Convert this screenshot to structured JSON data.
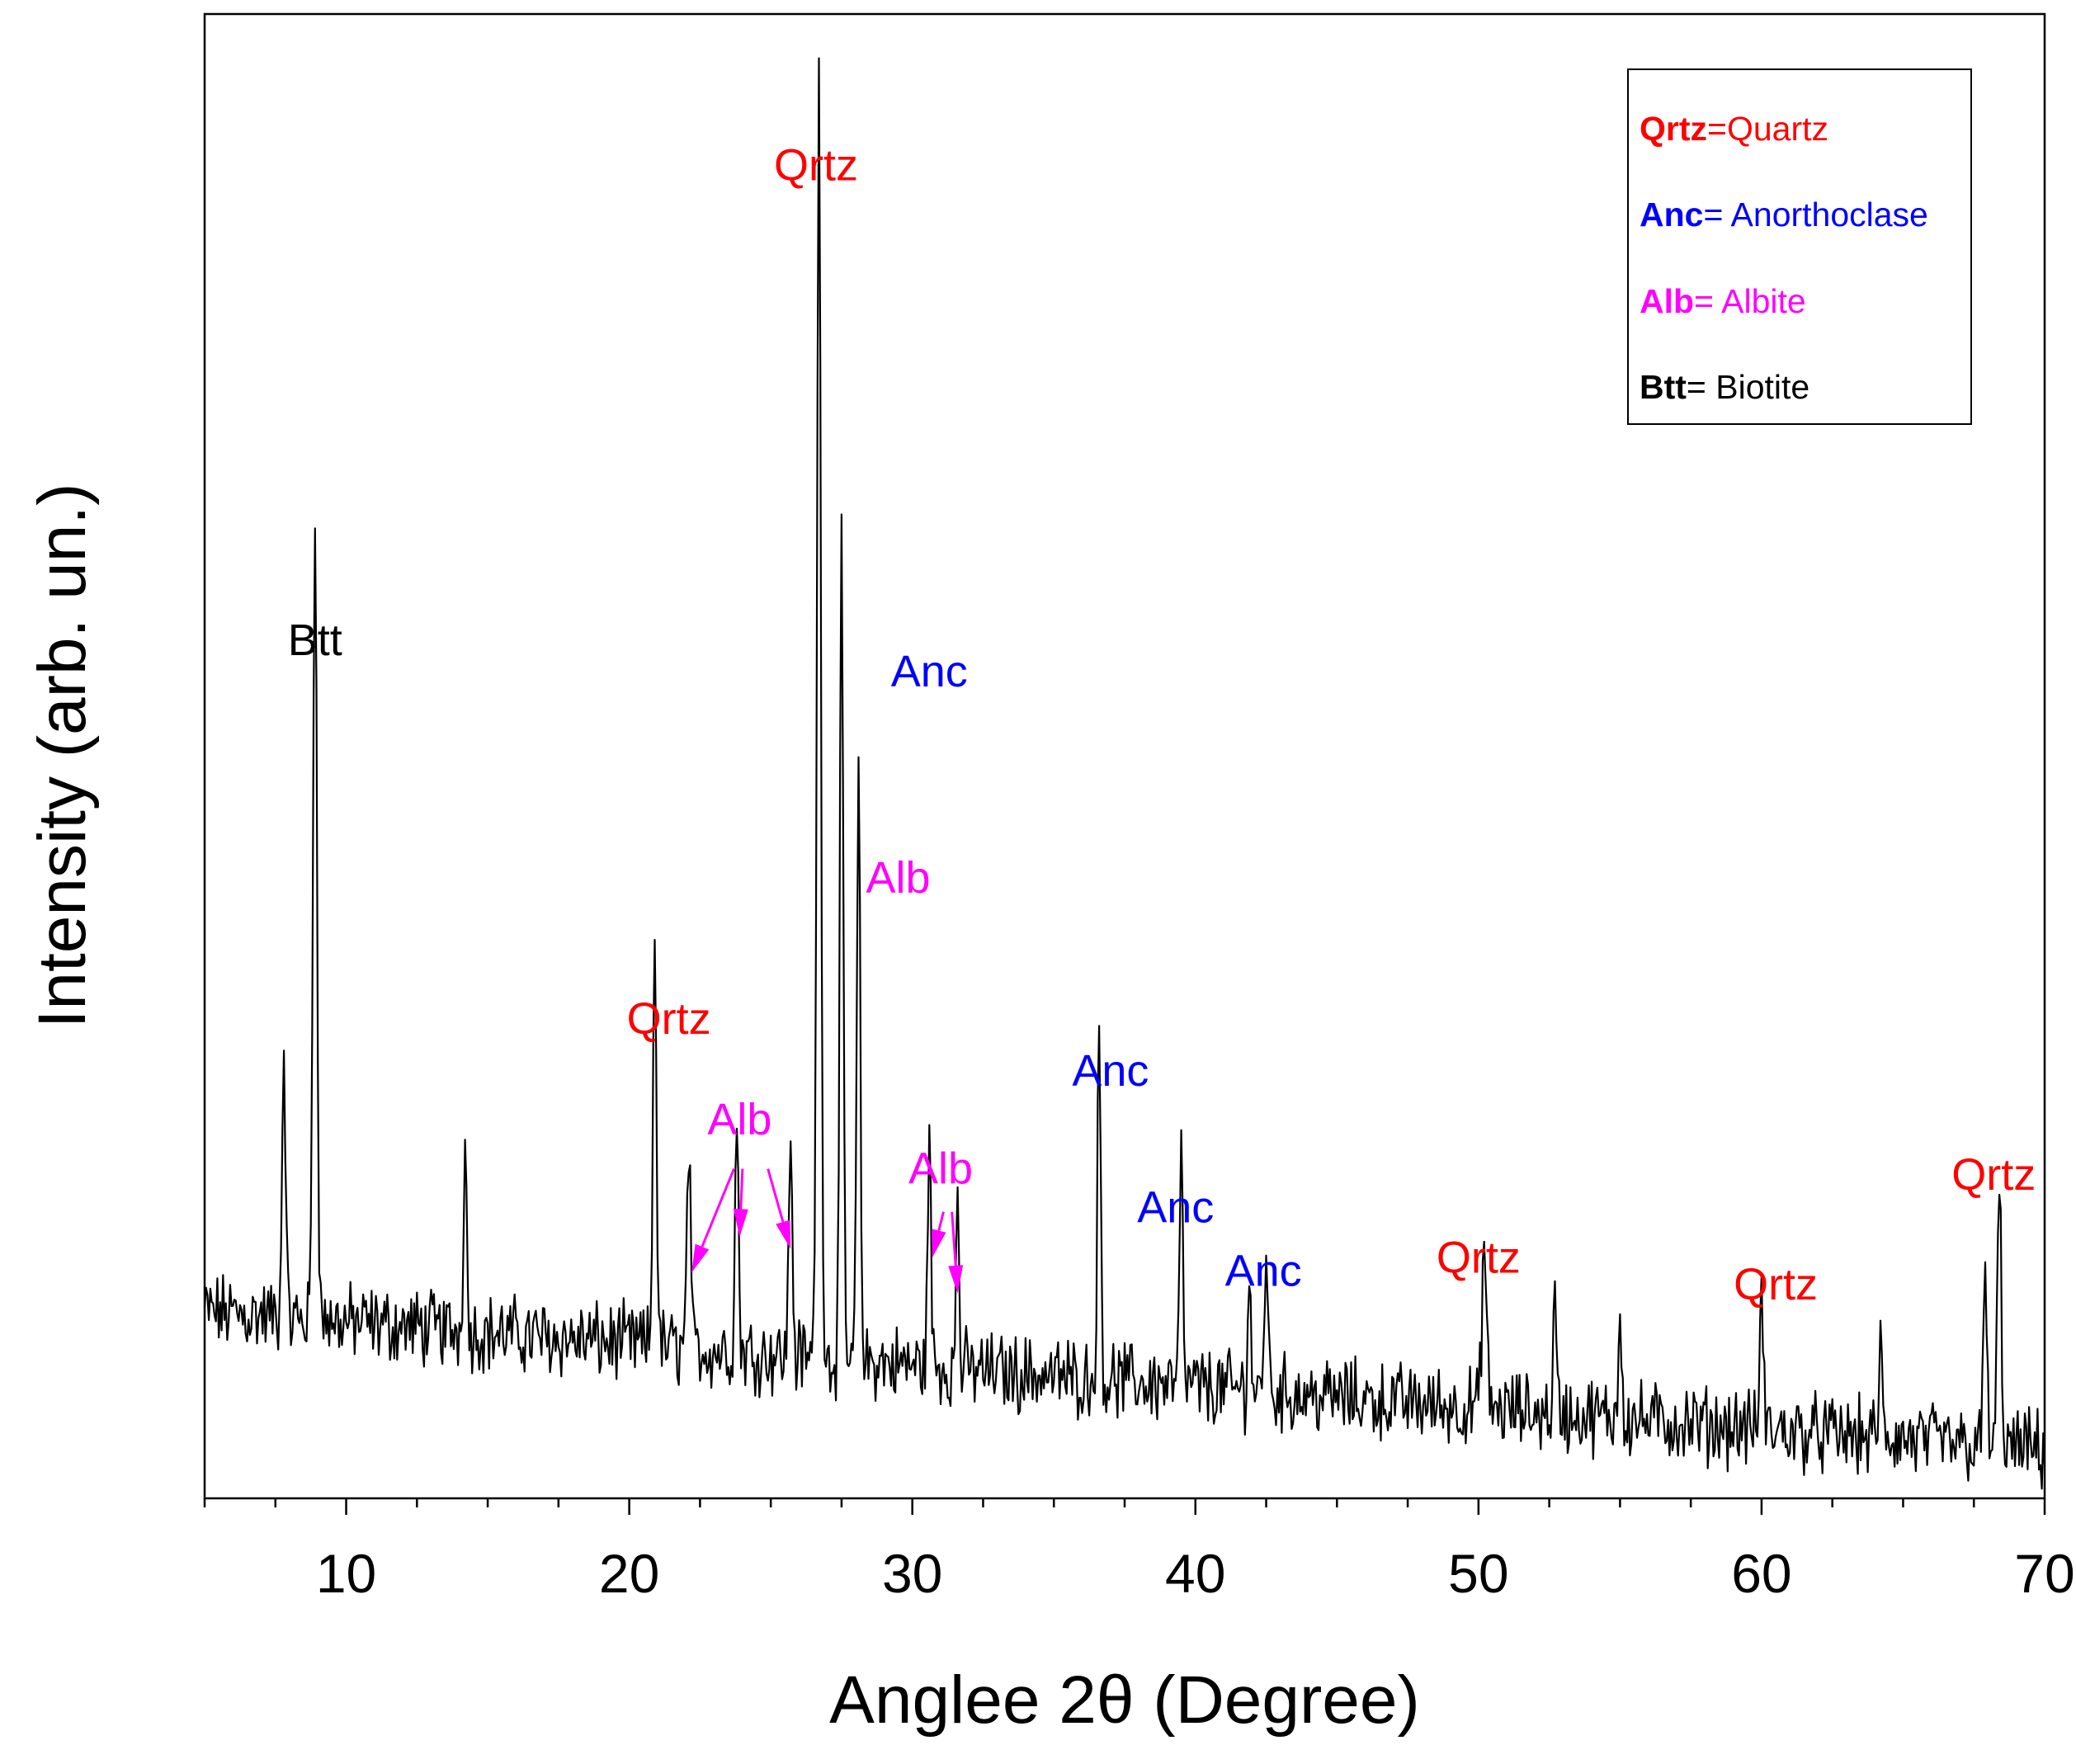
{
  "chart_data": {
    "type": "line",
    "title": "",
    "xlabel": "Anglee 2θ (Degree)",
    "ylabel": "Intensity (arb. un.)",
    "xlim": [
      5,
      70
    ],
    "ylim": [
      0,
      100
    ],
    "xticks": [
      10,
      20,
      30,
      40,
      50,
      60,
      70
    ],
    "x_minor_step": 2.5,
    "yticks": [],
    "grid": false,
    "baseline": {
      "start": 12.6,
      "end": 3.2,
      "noise": 2.1
    },
    "peaks": [
      {
        "x": 7.8,
        "y": 18.5,
        "w": 0.06
      },
      {
        "x": 8.9,
        "y": 55.0,
        "w": 0.07
      },
      {
        "x": 14.2,
        "y": 15.0,
        "w": 0.05
      },
      {
        "x": 20.9,
        "y": 29.0,
        "w": 0.06
      },
      {
        "x": 22.1,
        "y": 14.0,
        "w": 0.06
      },
      {
        "x": 23.8,
        "y": 16.0,
        "w": 0.06
      },
      {
        "x": 25.7,
        "y": 15.5,
        "w": 0.06
      },
      {
        "x": 26.7,
        "y": 86.0,
        "w": 0.07
      },
      {
        "x": 27.5,
        "y": 54.0,
        "w": 0.06
      },
      {
        "x": 28.1,
        "y": 40.0,
        "w": 0.06
      },
      {
        "x": 30.6,
        "y": 15.0,
        "w": 0.06
      },
      {
        "x": 31.6,
        "y": 12.5,
        "w": 0.05
      },
      {
        "x": 36.6,
        "y": 23.0,
        "w": 0.06
      },
      {
        "x": 39.5,
        "y": 15.0,
        "w": 0.06
      },
      {
        "x": 41.9,
        "y": 8.5,
        "w": 0.05
      },
      {
        "x": 42.5,
        "y": 10.0,
        "w": 0.06
      },
      {
        "x": 50.2,
        "y": 11.0,
        "w": 0.08
      },
      {
        "x": 52.7,
        "y": 7.5,
        "w": 0.06
      },
      {
        "x": 55.0,
        "y": 7.5,
        "w": 0.06
      },
      {
        "x": 60.0,
        "y": 9.5,
        "w": 0.06
      },
      {
        "x": 64.2,
        "y": 6.0,
        "w": 0.06
      },
      {
        "x": 67.9,
        "y": 12.0,
        "w": 0.06
      },
      {
        "x": 68.4,
        "y": 17.5,
        "w": 0.07
      }
    ],
    "annotations": [
      {
        "text": "Btt",
        "x": 8.9,
        "y": 56.8,
        "color": "#000000"
      },
      {
        "text": "Qrtz",
        "x": 26.6,
        "y": 88.8,
        "color": "#ff0000"
      },
      {
        "text": "Anc",
        "x": 30.6,
        "y": 54.7,
        "color": "#0000ff"
      },
      {
        "text": "Alb",
        "x": 29.5,
        "y": 40.8,
        "color": "#ff00ff"
      },
      {
        "text": "Qrtz",
        "x": 21.4,
        "y": 31.3,
        "color": "#ff0000"
      },
      {
        "text": "Alb",
        "x": 23.9,
        "y": 24.5,
        "color": "#ff00ff"
      },
      {
        "text": "Alb",
        "x": 31.0,
        "y": 21.2,
        "color": "#ff00ff"
      },
      {
        "text": "Anc",
        "x": 37.0,
        "y": 27.8,
        "color": "#0000ff"
      },
      {
        "text": "Anc",
        "x": 39.3,
        "y": 18.6,
        "color": "#0000ff"
      },
      {
        "text": "Anc",
        "x": 42.4,
        "y": 14.3,
        "color": "#0000ff"
      },
      {
        "text": "Qrtz",
        "x": 50.0,
        "y": 15.2,
        "color": "#ff0000"
      },
      {
        "text": "Qrtz",
        "x": 60.5,
        "y": 13.4,
        "color": "#ff0000"
      },
      {
        "text": "Qrtz",
        "x": 68.2,
        "y": 20.8,
        "color": "#ff0000"
      }
    ],
    "arrows": [
      {
        "from": [
          23.7,
          22.2
        ],
        "to": [
          22.2,
          15.2
        ],
        "color": "#ff00ff"
      },
      {
        "from": [
          24.0,
          22.2
        ],
        "to": [
          23.9,
          17.6
        ],
        "color": "#ff00ff"
      },
      {
        "from": [
          24.9,
          22.2
        ],
        "to": [
          25.7,
          16.8
        ],
        "color": "#ff00ff"
      },
      {
        "from": [
          31.1,
          19.3
        ],
        "to": [
          30.7,
          16.2
        ],
        "color": "#ff00ff"
      },
      {
        "from": [
          31.4,
          19.3
        ],
        "to": [
          31.6,
          13.8
        ],
        "color": "#ff00ff"
      }
    ],
    "legend": {
      "position": "top-right",
      "entries": [
        {
          "abbr": "Qrtz",
          "sep": "=",
          "name": "Quartz",
          "color": "#ff0000"
        },
        {
          "abbr": "Anc",
          "sep": "= ",
          "name": "Anorthoclase",
          "color": "#0000ff"
        },
        {
          "abbr": "Alb",
          "sep": "= ",
          "name": "Albite",
          "color": "#ff00ff"
        },
        {
          "abbr": "Btt",
          "sep": "= ",
          "name": "Biotite",
          "color": "#000000"
        }
      ]
    }
  }
}
